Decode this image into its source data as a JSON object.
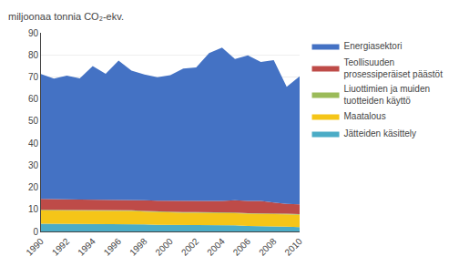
{
  "chart_data": {
    "type": "area",
    "stacked": true,
    "ylabel": "miljoonaa tonnia CO₂-ekv.",
    "x": [
      1990,
      1991,
      1992,
      1993,
      1994,
      1995,
      1996,
      1997,
      1998,
      1999,
      2000,
      2001,
      2002,
      2003,
      2004,
      2005,
      2006,
      2007,
      2008,
      2009,
      2010
    ],
    "series": [
      {
        "name": "Jätteiden käsittely",
        "color": "#4BACC6",
        "values": [
          3.5,
          3.5,
          3.5,
          3.5,
          3.5,
          3.5,
          3.5,
          3.5,
          3.2,
          3.0,
          3.0,
          3.0,
          3.0,
          3.0,
          2.8,
          2.8,
          2.5,
          2.5,
          2.3,
          2.2,
          2.0
        ]
      },
      {
        "name": "Maatalous",
        "color": "#F5C518",
        "values": [
          6.0,
          6.0,
          6.0,
          5.8,
          5.8,
          5.8,
          5.8,
          5.8,
          5.8,
          5.8,
          5.5,
          5.5,
          5.5,
          5.5,
          5.5,
          5.5,
          5.5,
          5.5,
          5.5,
          5.5,
          5.5
        ]
      },
      {
        "name": "Liuottimien ja muiden\ntuotteiden käyttö",
        "color": "#9BBB59",
        "values": [
          0.3,
          0.3,
          0.3,
          0.3,
          0.3,
          0.3,
          0.3,
          0.3,
          0.3,
          0.3,
          0.3,
          0.3,
          0.3,
          0.3,
          0.3,
          0.3,
          0.3,
          0.3,
          0.3,
          0.3,
          0.3
        ]
      },
      {
        "name": "Teollisuuden\nprosessiperäiset päästöt",
        "color": "#BE4B48",
        "values": [
          5.0,
          5.0,
          4.8,
          4.8,
          4.8,
          4.8,
          4.8,
          4.8,
          4.8,
          4.8,
          5.0,
          5.0,
          5.0,
          5.0,
          5.2,
          5.5,
          5.5,
          5.5,
          5.0,
          4.5,
          4.5
        ]
      },
      {
        "name": "Energiasektori",
        "color": "#4472C4",
        "values": [
          56.5,
          54.5,
          56.0,
          55.0,
          60.5,
          57.0,
          63.0,
          58.5,
          57.0,
          56.0,
          57.0,
          60.0,
          60.5,
          67.0,
          69.5,
          64.0,
          66.0,
          63.0,
          64.5,
          53.0,
          58.0
        ]
      }
    ],
    "xlim": [
      1990,
      2010
    ],
    "xticks": [
      1990,
      1992,
      1994,
      1996,
      1998,
      2000,
      2002,
      2004,
      2006,
      2008,
      2010
    ],
    "ylim": [
      0,
      90
    ],
    "yticks": [
      0,
      10,
      20,
      30,
      40,
      50,
      60,
      70,
      80,
      90
    ],
    "grid": "y",
    "legend": "right"
  }
}
